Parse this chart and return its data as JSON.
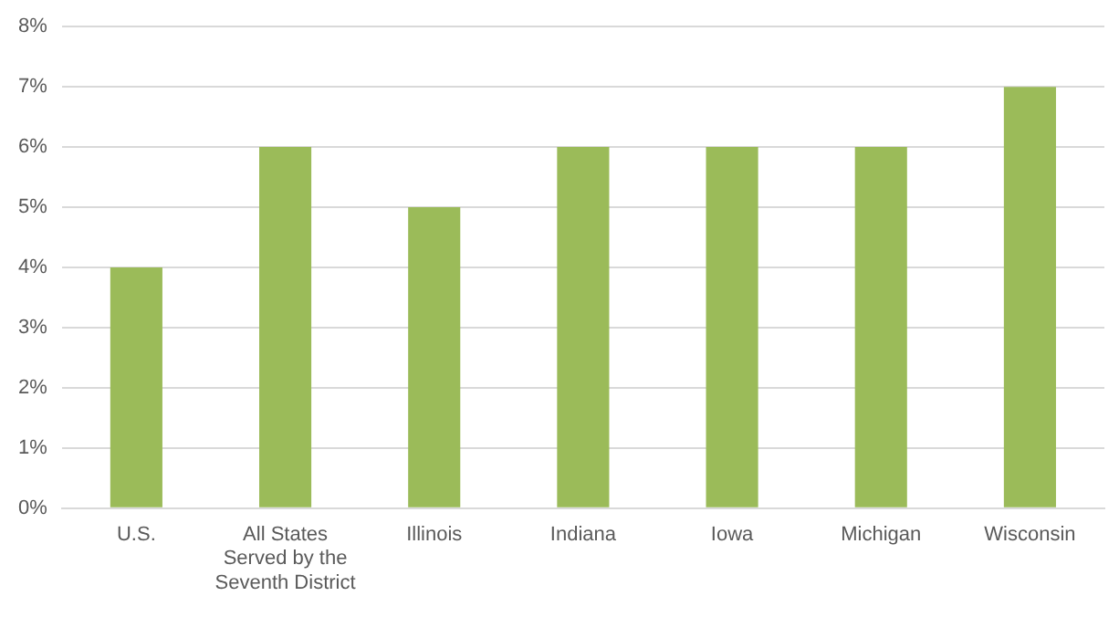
{
  "chart_data": {
    "type": "bar",
    "categories": [
      "U.S.",
      "All States Served by the Seventh District",
      "Illinois",
      "Indiana",
      "Iowa",
      "Michigan",
      "Wisconsin"
    ],
    "values": [
      4,
      6,
      5,
      6,
      6,
      6,
      7
    ],
    "color": "#9bbb59",
    "ylim": [
      0,
      8
    ],
    "yticks": [
      {
        "value": 0,
        "label": "0%"
      },
      {
        "value": 1,
        "label": "1%"
      },
      {
        "value": 2,
        "label": "2%"
      },
      {
        "value": 3,
        "label": "3%"
      },
      {
        "value": 4,
        "label": "4%"
      },
      {
        "value": 5,
        "label": "5%"
      },
      {
        "value": 6,
        "label": "6%"
      },
      {
        "value": 7,
        "label": "7%"
      },
      {
        "value": 8,
        "label": "8%"
      }
    ],
    "grid": "y",
    "legend": false
  }
}
